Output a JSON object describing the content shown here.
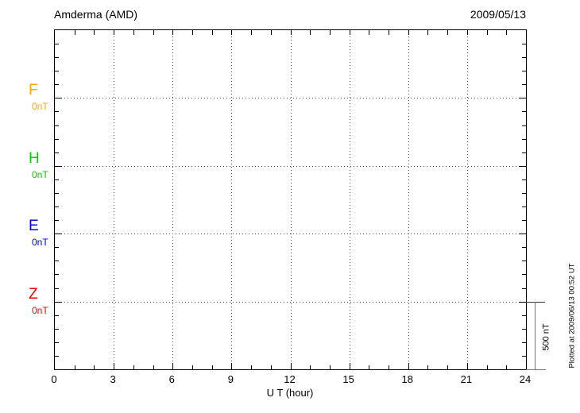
{
  "chart_data": {
    "type": "line",
    "title": "Amderma (AMD)",
    "date_label": "2009/05/13",
    "xlabel": "U T (hour)",
    "xlim": [
      0,
      24
    ],
    "x_major_ticks": [
      0,
      3,
      6,
      9,
      12,
      15,
      18,
      21,
      24
    ],
    "x_minor_step_hours": 1,
    "y_minor_divisions_per_band": 5,
    "grid": "dotted",
    "legend_position": "left-margin",
    "channels": [
      {
        "name": "F",
        "offset_label": "0nT",
        "color": "#FFA500",
        "values": []
      },
      {
        "name": "H",
        "offset_label": "0nT",
        "color": "#00CC00",
        "values": []
      },
      {
        "name": "E",
        "offset_label": "0nT",
        "color": "#0000EE",
        "values": []
      },
      {
        "name": "Z",
        "offset_label": "0nT",
        "color": "#EE0000",
        "values": []
      }
    ],
    "amplitude_scale": {
      "label": "500 nT"
    },
    "plotted_note": "Plotted at 2009/06/13 00:52 UT"
  }
}
